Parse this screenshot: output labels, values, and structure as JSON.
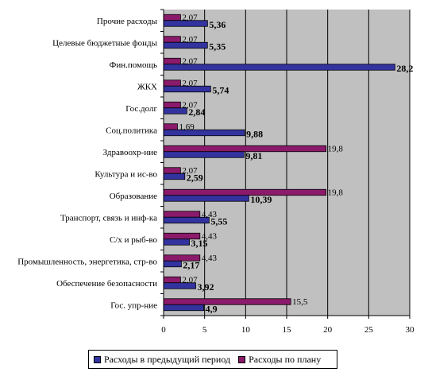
{
  "chart_data": {
    "type": "bar",
    "orientation": "horizontal",
    "categories": [
      "Прочие расходы",
      "Целевые бюджетные фонды",
      "Фин.помощь",
      "ЖКХ",
      "Гос.долг",
      "Соц.политика",
      "Здравоохр-ние",
      "Культура и ис-во",
      "Образование",
      "Транспорт, связь и инф-ка",
      "С/х и рыб-во",
      "Промышленность, энергетика, стр-во",
      "Обеспечение безопасности",
      "Гос. упр-ние"
    ],
    "series": [
      {
        "name": "Расходы в предыдущий период",
        "color": "#3333a0",
        "values": [
          5.36,
          5.35,
          28.2,
          5.74,
          2.84,
          9.88,
          9.81,
          2.59,
          10.39,
          5.55,
          3.15,
          2.17,
          3.92,
          4.9
        ],
        "labels": [
          "5,36",
          "5,35",
          "28,2",
          "5,74",
          "2,84",
          "9,88",
          "9,81",
          "2,59",
          "10,39",
          "5,55",
          "3,15",
          "2,17",
          "3,92",
          "4,9"
        ]
      },
      {
        "name": "Расходы по плану",
        "color": "#8b1a6b",
        "values": [
          2.07,
          2.07,
          2.07,
          2.07,
          2.07,
          1.69,
          19.8,
          2.07,
          19.8,
          4.43,
          4.43,
          4.43,
          2.07,
          15.5
        ],
        "labels": [
          "2,07",
          "2,07",
          "2,07",
          "2,07",
          "2,07",
          "1,69",
          "19,8",
          "2,07",
          "19,8",
          "4,43",
          "4,43",
          "4,43",
          "2,07",
          "15,5"
        ]
      }
    ],
    "xticks": [
      "0",
      "5",
      "10",
      "15",
      "20",
      "25",
      "30"
    ],
    "xlim": [
      0,
      30
    ],
    "grid": true,
    "plot_background": "#c0c0c0",
    "legend_position": "bottom"
  }
}
